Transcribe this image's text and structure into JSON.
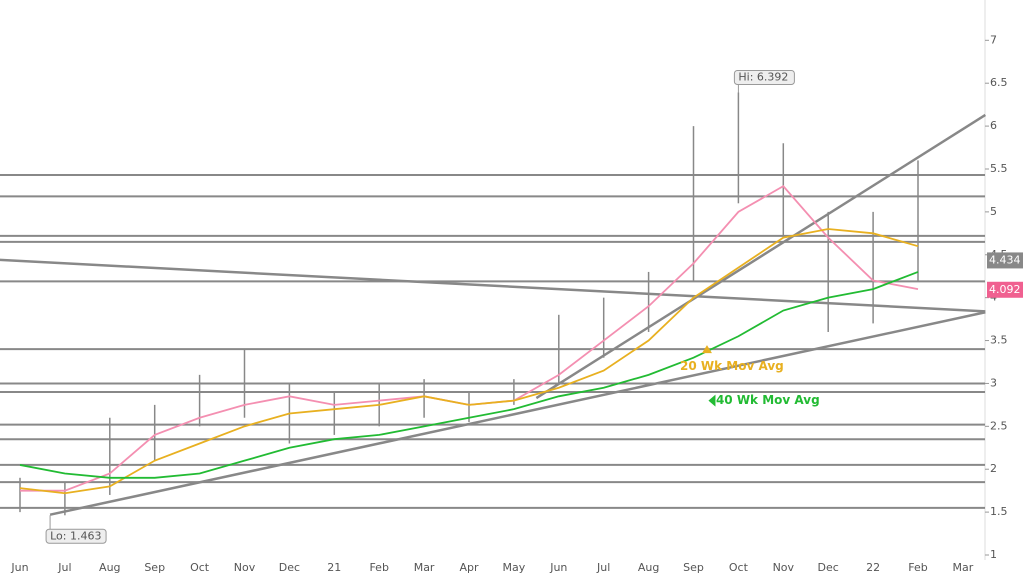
{
  "chart_data": {
    "type": "line",
    "categories": [
      "Jun",
      "Jul",
      "Aug",
      "Sep",
      "Oct",
      "Nov",
      "Dec",
      "21",
      "Feb",
      "Mar",
      "Apr",
      "May",
      "Jun",
      "Jul",
      "Aug",
      "Sep",
      "Oct",
      "Nov",
      "Dec",
      "22",
      "Feb",
      "Mar"
    ],
    "series": [
      {
        "color": "#f48fb1",
        "values": [
          1.75,
          1.75,
          1.95,
          2.4,
          2.6,
          2.75,
          2.85,
          2.75,
          2.8,
          2.85,
          2.75,
          2.8,
          3.1,
          3.5,
          3.9,
          4.4,
          5.0,
          5.3,
          4.7,
          4.2,
          4.1,
          null
        ]
      },
      {
        "name": "20 Wk Mov Avg",
        "color": "#e8b020",
        "values": [
          1.78,
          1.72,
          1.8,
          2.1,
          2.3,
          2.5,
          2.65,
          2.7,
          2.75,
          2.85,
          2.75,
          2.8,
          2.95,
          3.15,
          3.5,
          4.0,
          4.35,
          4.7,
          4.8,
          4.75,
          4.6,
          null
        ]
      },
      {
        "name": "40 Wk Mov Avg",
        "color": "#22bb33",
        "values": [
          2.05,
          1.95,
          1.9,
          1.9,
          1.95,
          2.1,
          2.25,
          2.35,
          2.4,
          2.5,
          2.6,
          2.7,
          2.85,
          2.95,
          3.1,
          3.3,
          3.55,
          3.85,
          4.0,
          4.1,
          4.3,
          null
        ]
      }
    ],
    "bars": {
      "color": "#888",
      "high": [
        1.9,
        1.85,
        2.6,
        2.75,
        3.1,
        3.4,
        3.0,
        2.9,
        3.0,
        3.05,
        2.9,
        3.05,
        3.8,
        4.0,
        4.3,
        6.0,
        6.392,
        5.8,
        5.0,
        5.0,
        5.6,
        null
      ],
      "low": [
        1.5,
        1.463,
        1.7,
        2.1,
        2.5,
        2.6,
        2.3,
        2.4,
        2.5,
        2.6,
        2.55,
        2.75,
        3.0,
        3.3,
        3.6,
        4.2,
        5.1,
        4.7,
        3.6,
        3.7,
        4.2,
        null
      ]
    },
    "hlines": [
      5.43,
      5.18,
      4.72,
      4.65,
      4.19,
      3.4,
      3.0,
      2.9,
      2.52,
      2.35,
      2.05,
      1.85,
      1.55
    ],
    "trendlines": [
      {
        "x": [
          0.67,
          21.5
        ],
        "y": [
          1.47,
          3.83
        ]
      },
      {
        "x": [
          -0.45,
          21.5
        ],
        "y": [
          4.44,
          3.84
        ]
      },
      {
        "x": [
          11.5,
          21.5
        ],
        "y": [
          2.83,
          6.13
        ]
      }
    ],
    "ylim": [
      1,
      7.47
    ],
    "yticks": [
      1,
      1.5,
      2,
      2.5,
      3,
      3.5,
      4,
      4.5,
      5,
      5.5,
      6,
      6.5,
      7
    ],
    "annotations": {
      "high": {
        "text": "Hi: 6.392",
        "value": 6.392
      },
      "low": {
        "text": "Lo: 1.463",
        "value": 1.463
      }
    },
    "last_prices": [
      {
        "value": 4.434,
        "color": "#888"
      },
      {
        "value": 4.092,
        "color": "#f06090"
      }
    ]
  }
}
